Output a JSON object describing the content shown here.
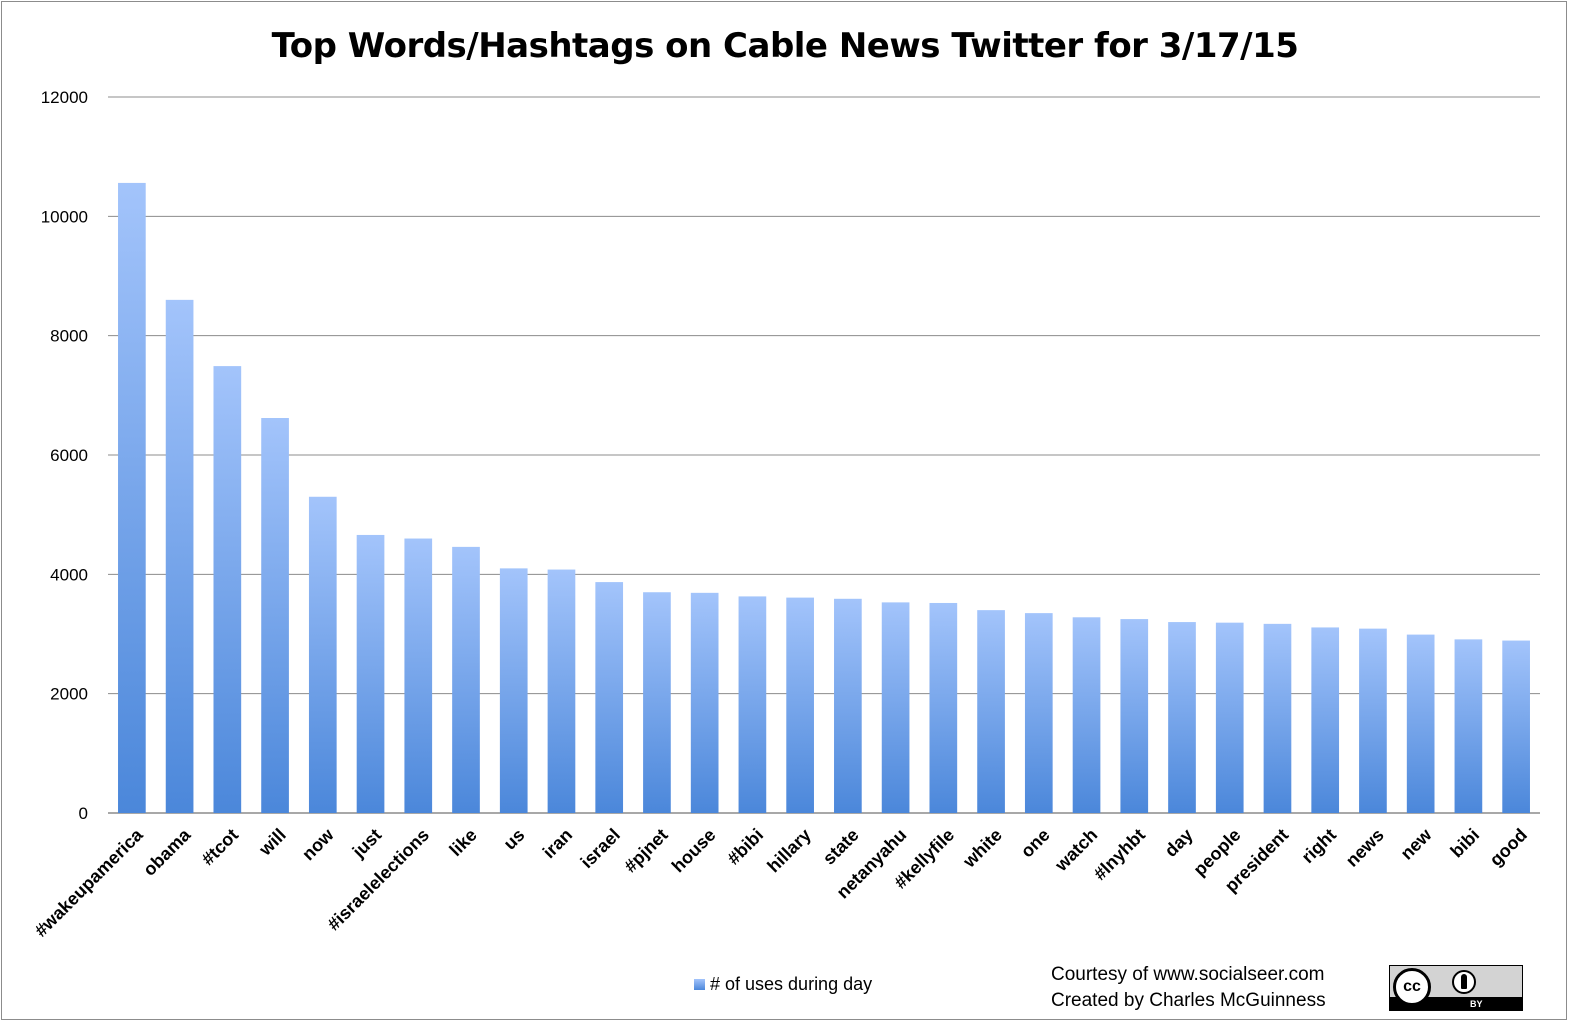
{
  "chart_data": {
    "type": "bar",
    "title": "Top Words/Hashtags on Cable News Twitter for 3/17/15",
    "xlabel": "",
    "ylabel": "",
    "ylim": [
      0,
      12000
    ],
    "yticks": [
      0,
      2000,
      4000,
      6000,
      8000,
      10000,
      12000
    ],
    "grid": true,
    "legend_position": "bottom",
    "categories": [
      "#wakeupamerica",
      "obama",
      "#tcot",
      "will",
      "now",
      "just",
      "#israelelections",
      "like",
      "us",
      "iran",
      "israel",
      "#pjnet",
      "house",
      "#bibi",
      "hillary",
      "state",
      "netanyahu",
      "#kellyfile",
      "white",
      "one",
      "watch",
      "#lnyhbt",
      "day",
      "people",
      "president",
      "right",
      "news",
      "new",
      "bibi",
      "good"
    ],
    "series": [
      {
        "name": "# of uses during day",
        "values": [
          10560,
          8600,
          7490,
          6620,
          5300,
          4660,
          4600,
          4460,
          4100,
          4080,
          3870,
          3700,
          3690,
          3630,
          3610,
          3590,
          3530,
          3520,
          3400,
          3350,
          3280,
          3250,
          3200,
          3190,
          3170,
          3110,
          3090,
          2990,
          2910,
          2890
        ]
      }
    ],
    "colors": {
      "bar_top": "#a3c4fb",
      "bar_bottom": "#4b87da",
      "grid": "#8c8c8c"
    }
  },
  "credits": {
    "line1": "Courtesy of www.socialseer.com",
    "line2": "Created by Charles McGuinness"
  },
  "license_badge": {
    "label": "cc",
    "by_label": "BY",
    "icon": "creative-commons-by-icon"
  }
}
